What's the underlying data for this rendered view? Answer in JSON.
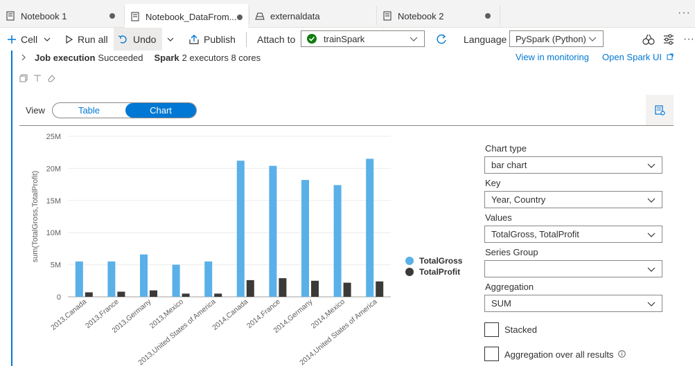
{
  "tabs": [
    {
      "label": "Notebook 1",
      "active": false
    },
    {
      "label": "Notebook_DataFrom...",
      "active": true
    },
    {
      "label": "externaldata",
      "active": false
    },
    {
      "label": "Notebook 2",
      "active": false
    }
  ],
  "toolbar": {
    "cell_label": "Cell",
    "run_all_label": "Run all",
    "undo_label": "Undo",
    "publish_label": "Publish",
    "attach_to_label": "Attach to",
    "attach_to_value": "trainSpark",
    "language_label": "Language",
    "language_value": "PySpark (Python)"
  },
  "job": {
    "job_execution_label": "Job execution",
    "job_execution_status": "Succeeded",
    "spark_label": "Spark",
    "spark_value": "2 executors 8 cores",
    "view_monitoring_link": "View in monitoring",
    "open_spark_ui_link": "Open Spark UI"
  },
  "view": {
    "label": "View",
    "table_label": "Table",
    "chart_label": "Chart"
  },
  "chart_data": {
    "type": "bar",
    "ylabel": "sum(TotalGross,TotalProfit)",
    "ylim": [
      0,
      25000000
    ],
    "yticks": [
      0,
      5000000,
      10000000,
      15000000,
      20000000,
      25000000
    ],
    "ytick_labels": [
      "0",
      "5M",
      "10M",
      "15M",
      "20M",
      "25M"
    ],
    "categories": [
      "2013,Canada",
      "2013,France",
      "2013,Germany",
      "2013,Mexico",
      "2013,United States of America",
      "2014,Canada",
      "2014,France",
      "2014,Germany",
      "2014,Mexico",
      "2014,United States of America"
    ],
    "series": [
      {
        "name": "TotalGross",
        "color": "#5ab0e8",
        "values": [
          5500000,
          5500000,
          6600000,
          5000000,
          5500000,
          21200000,
          20400000,
          18200000,
          17400000,
          21500000
        ]
      },
      {
        "name": "TotalProfit",
        "color": "#3b3a39",
        "values": [
          700000,
          800000,
          1000000,
          500000,
          500000,
          2600000,
          2900000,
          2500000,
          2200000,
          2400000
        ]
      }
    ],
    "legend_position": "right",
    "grid": true
  },
  "settings": {
    "chart_type_label": "Chart type",
    "chart_type_value": "bar chart",
    "key_label": "Key",
    "key_value": "Year, Country",
    "values_label": "Values",
    "values_value": "TotalGross, TotalProfit",
    "series_group_label": "Series Group",
    "series_group_value": "",
    "aggregation_label": "Aggregation",
    "aggregation_value": "SUM",
    "stacked_label": "Stacked",
    "aggregation_all_label": "Aggregation over all results"
  }
}
